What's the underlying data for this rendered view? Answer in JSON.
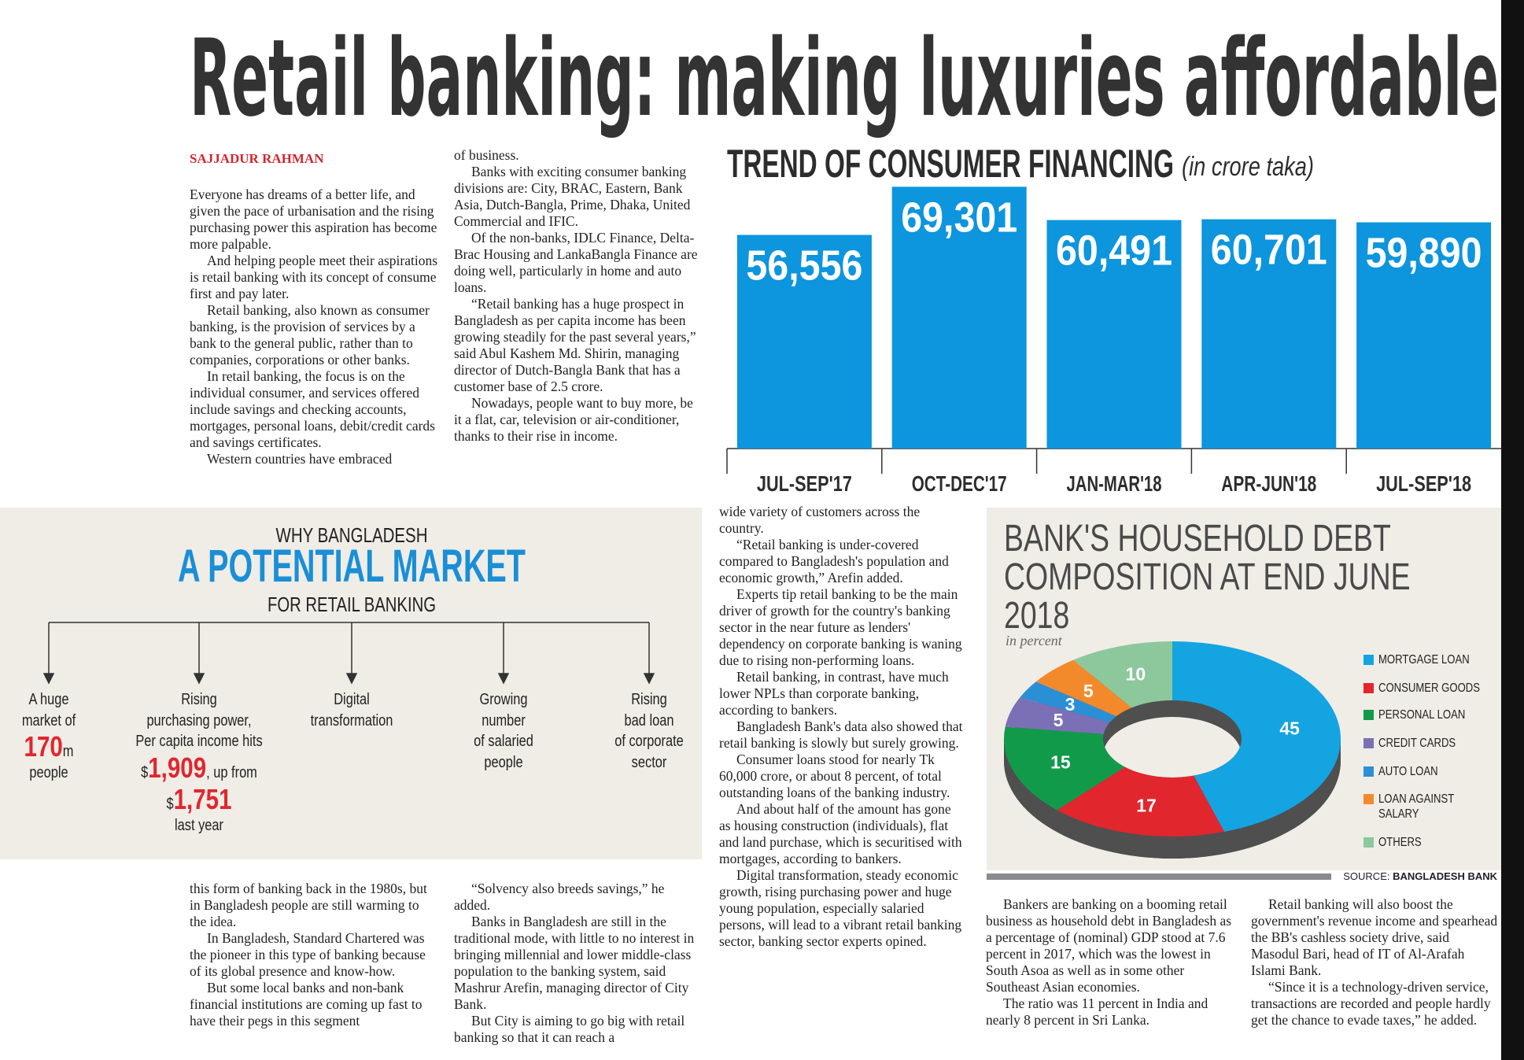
{
  "headline": "Retail banking: making luxuries affordable",
  "byline": "SAJJADUR RAHMAN",
  "columns": [
    {
      "paragraphs": [
        "Everyone has dreams of a better life, and given the pace of urbanisation and the rising purchasing power this aspiration has become more palpable.",
        "And helping people meet their aspirations is retail banking with its concept of consume first and pay later.",
        "Retail banking, also known as consumer banking, is the provision of services by a bank to the general public, rather than to companies, corporations or other banks.",
        "In retail banking, the focus is on the individual consumer, and services offered include savings and checking accounts, mortgages, personal loans, debit/credit cards and savings certificates.",
        "Western countries have embraced"
      ]
    },
    {
      "paragraphs": [
        "of business.",
        "Banks with exciting consumer banking divisions are: City, BRAC, Eastern, Bank Asia, Dutch-Bangla, Prime, Dhaka, United Commercial and IFIC.",
        "Of the non-banks, IDLC Finance, Delta-Brac Housing and LankaBangla Finance are doing well, particularly in home and auto loans.",
        "“Retail banking has a huge prospect in Bangladesh as per capita income has been growing steadily for the past several years,” said Abul Kashem Md. Shirin, managing director of Dutch-Bangla Bank that has a customer base of 2.5 crore.",
        "Nowadays, people want to buy more, be it a flat, car, television or air-conditioner, thanks to their rise in income."
      ]
    },
    {
      "paragraphs": [
        "this form of banking back in the 1980s, but in Bangladesh people are still warming to the idea.",
        "In Bangladesh, Standard Chartered was the pioneer in this type of banking because of its global presence and know-how.",
        "But some local banks and non-bank financial institutions are coming up fast to have their pegs in this segment"
      ]
    },
    {
      "paragraphs": [
        "“Solvency also breeds savings,” he added.",
        "Banks in Bangladesh are still in the traditional mode, with little to no interest in bringing millennial and lower middle-class population to the banking system, said Mashrur Arefin, managing director of City Bank.",
        "But City is aiming to go big with retail banking so that it can reach a"
      ]
    },
    {
      "paragraphs": [
        "wide variety of customers across the country.",
        "“Retail banking is under-covered compared to Bangladesh's population and economic growth,” Arefin added.",
        "Experts tip retail banking to be the main driver of growth for the country's banking sector in the near future as lenders' dependency on corporate banking is waning due to rising non-performing loans.",
        "Retail banking, in contrast, have much lower NPLs than corporate banking, according to bankers.",
        "Bangladesh Bank's data also showed that retail banking is slowly but surely growing.",
        "Consumer loans stood for nearly Tk 60,000 crore, or about 8 percent, of total outstanding loans of the banking industry.",
        "And about half of the amount has gone as housing construction (individuals), flat and land purchase, which is securitised with mortgages, according to bankers.",
        "Digital transformation, steady economic growth, rising purchasing power and huge young population, especially salaried persons, will lead to a vibrant retail banking sector, banking sector experts opined."
      ]
    },
    {
      "paragraphs": [
        "Bankers are banking on a booming retail business as household debt in Bangladesh as a percentage of (nominal) GDP stood at 7.6 percent in 2017, which was the lowest in South Asoa as well as in some other Southeast Asian economies.",
        "The ratio was 11 percent in India and nearly 8 percent in Sri Lanka."
      ]
    },
    {
      "paragraphs": [
        "Retail banking will also boost the government's revenue income and spearhead the BB's cashless society drive, said Masodul Bari, head of IT of Al-Arafah Islami Bank.",
        "“Since it is a technology-driven service, transactions are recorded and people hardly get the chance to evade taxes,” he added."
      ]
    }
  ],
  "infographic": {
    "kicker": "WHY BANGLADESH",
    "title": "A POTENTIAL MARKET",
    "subtitle": "FOR RETAIL BANKING",
    "items": [
      {
        "lines": [
          "A huge",
          "market of"
        ],
        "figure": "170",
        "unit": "m",
        "text_after": "people"
      },
      {
        "lines": [
          "Rising",
          "purchasing power,",
          "Per capita income hits"
        ],
        "currency": "$",
        "figure": "1,909",
        "text_mid": ", up from",
        "currency_2": "$",
        "figure_2": "1,751",
        "text_after": "last year"
      },
      {
        "lines": [
          "Digital",
          "transformation"
        ]
      },
      {
        "lines": [
          "Growing",
          "number",
          "of salaried",
          "people"
        ]
      },
      {
        "lines": [
          "Rising",
          "bad loan",
          "of corporate",
          "sector"
        ]
      }
    ]
  },
  "chart_data": [
    {
      "type": "bar",
      "title": "TREND OF CONSUMER FINANCING",
      "subtitle": "(in crore taka)",
      "categories": [
        "JUL-SEP'17",
        "OCT-DEC'17",
        "JAN-MAR'18",
        "APR-JUN'18",
        "JUL-SEP'18"
      ],
      "values": [
        56556,
        69301,
        60491,
        60701,
        59890
      ],
      "value_labels": [
        "56,556",
        "69,301",
        "60,491",
        "60,701",
        "59,890"
      ],
      "color": "#0d95dd",
      "ylim": [
        0,
        70000
      ]
    },
    {
      "type": "pie",
      "title": "BANK'S HOUSEHOLD DEBT COMPOSITION AT END JUNE 2018",
      "subtitle": "in percent",
      "categories": [
        "MORTGAGE LOAN",
        "CONSUMER GOODS",
        "PERSONAL LOAN",
        "CREDIT CARDS",
        "AUTO LOAN",
        "LOAN AGAINST SALARY",
        "OTHERS"
      ],
      "values": [
        45,
        17,
        15,
        5,
        3,
        5,
        10
      ],
      "colors": [
        "#14a4e2",
        "#e2262e",
        "#129a4b",
        "#7b70b6",
        "#2b8fd6",
        "#f28a2c",
        "#8cc89b"
      ],
      "source_label": "SOURCE:",
      "source": "BANGLADESH BANK"
    }
  ]
}
